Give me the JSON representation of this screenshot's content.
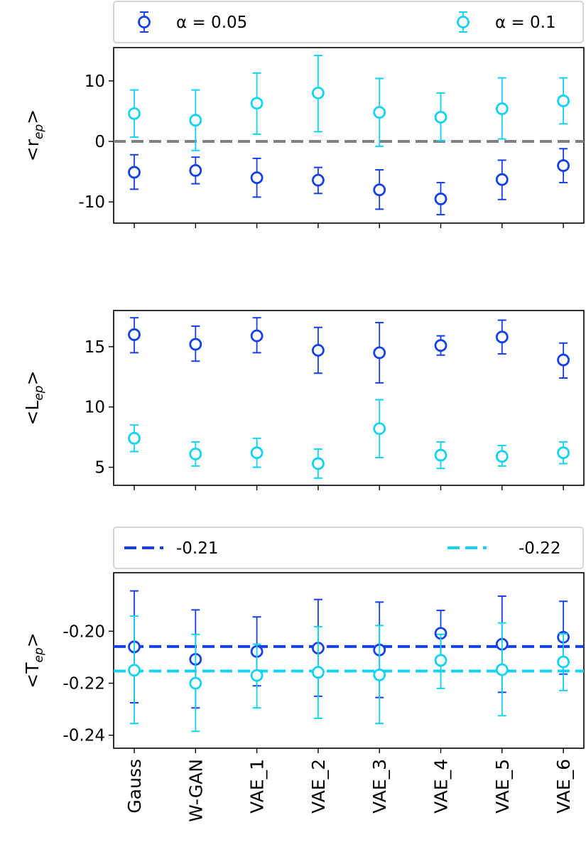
{
  "colors": {
    "alpha_005": "#1440e6",
    "alpha_01": "#12d2f2",
    "zero_line": "#808080"
  },
  "chart_data": [
    {
      "type": "scatter",
      "panel": "top",
      "ylabel_main": "<r",
      "ylabel_sub": "ep",
      "ylabel_end": ">",
      "categories": [
        "Gauss",
        "W-GAN",
        "VAE_1",
        "VAE_2",
        "VAE_3",
        "VAE_4",
        "VAE_5",
        "VAE_6"
      ],
      "ylim": [
        -13.5,
        15.5
      ],
      "yticks": [
        10,
        0,
        -10
      ],
      "ytick_labels": [
        "10",
        "0",
        "-10"
      ],
      "legend": {
        "placement": "top",
        "entries": [
          "α = 0.05",
          "α = 0.1"
        ]
      },
      "hline": {
        "y": 0,
        "style": "dashed",
        "color": "gray"
      },
      "series": [
        {
          "name": "α = 0.05",
          "values": [
            -5.1,
            -4.8,
            -6.0,
            -6.4,
            -8.0,
            -9.5,
            -6.3,
            -4.0
          ],
          "lower": [
            -7.9,
            -7.0,
            -9.2,
            -8.6,
            -11.2,
            -12.1,
            -9.6,
            -6.8
          ],
          "upper": [
            -2.2,
            -2.6,
            -2.8,
            -4.3,
            -4.7,
            -6.8,
            -3.1,
            -1.2
          ]
        },
        {
          "name": "α = 0.1",
          "values": [
            4.6,
            3.5,
            6.3,
            8.0,
            4.8,
            4.0,
            5.4,
            6.7
          ],
          "lower": [
            0.7,
            -1.5,
            1.2,
            1.6,
            -0.8,
            0.1,
            0.4,
            2.9
          ],
          "upper": [
            8.5,
            8.5,
            11.3,
            14.2,
            10.4,
            8.0,
            10.5,
            10.5
          ]
        }
      ]
    },
    {
      "type": "scatter",
      "panel": "middle",
      "ylabel_main": "<L",
      "ylabel_sub": "ep",
      "ylabel_end": ">",
      "categories": [
        "Gauss",
        "W-GAN",
        "VAE_1",
        "VAE_2",
        "VAE_3",
        "VAE_4",
        "VAE_5",
        "VAE_6"
      ],
      "ylim": [
        3.5,
        18.0
      ],
      "yticks": [
        15,
        10,
        5
      ],
      "ytick_labels": [
        "15",
        "10",
        "5"
      ],
      "series": [
        {
          "name": "α = 0.05",
          "values": [
            16.0,
            15.2,
            15.9,
            14.7,
            14.5,
            15.1,
            15.8,
            13.9
          ],
          "lower": [
            14.5,
            13.8,
            14.5,
            12.8,
            12.0,
            14.3,
            14.4,
            12.4
          ],
          "upper": [
            17.4,
            16.7,
            17.4,
            16.6,
            17.0,
            15.9,
            17.2,
            15.3
          ]
        },
        {
          "name": "α = 0.1",
          "values": [
            7.4,
            6.1,
            6.2,
            5.3,
            8.2,
            6.0,
            5.9,
            6.2
          ],
          "lower": [
            6.3,
            5.1,
            5.0,
            4.1,
            5.8,
            4.9,
            5.1,
            5.3
          ],
          "upper": [
            8.5,
            7.1,
            7.4,
            6.5,
            10.6,
            7.1,
            6.8,
            7.1
          ]
        }
      ]
    },
    {
      "type": "scatter",
      "panel": "bottom",
      "ylabel_main": "<T",
      "ylabel_sub": "ep",
      "ylabel_end": ">",
      "categories": [
        "Gauss",
        "W-GAN",
        "VAE_1",
        "VAE_2",
        "VAE_3",
        "VAE_4",
        "VAE_5",
        "VAE_6"
      ],
      "ylim": [
        -0.245,
        -0.1775
      ],
      "yticks": [
        -0.2,
        -0.22,
        -0.24
      ],
      "ytick_labels": [
        "-0.20",
        "-0.22",
        "-0.24"
      ],
      "legend": {
        "placement": "top",
        "entries": [
          "-0.21",
          "-0.22"
        ]
      },
      "hlines": [
        {
          "y": -0.2059,
          "label": "-0.21",
          "series": "α = 0.05"
        },
        {
          "y": -0.2153,
          "label": "-0.22",
          "series": "α = 0.1"
        }
      ],
      "series": [
        {
          "name": "α = 0.05",
          "values": [
            -0.206,
            -0.2108,
            -0.2078,
            -0.2065,
            -0.2072,
            -0.2008,
            -0.205,
            -0.2023
          ],
          "lower": [
            -0.2275,
            -0.2295,
            -0.221,
            -0.225,
            -0.2255,
            -0.2125,
            -0.2235,
            -0.2165
          ],
          "upper": [
            -0.1845,
            -0.1918,
            -0.1945,
            -0.1878,
            -0.1888,
            -0.192,
            -0.1865,
            -0.1885
          ]
        },
        {
          "name": "α = 0.1",
          "values": [
            -0.215,
            -0.22,
            -0.217,
            -0.2158,
            -0.2168,
            -0.2112,
            -0.2148,
            -0.2118
          ],
          "lower": [
            -0.2355,
            -0.2385,
            -0.2295,
            -0.2335,
            -0.2355,
            -0.222,
            -0.2325,
            -0.2228
          ],
          "upper": [
            -0.1942,
            -0.2012,
            -0.205,
            -0.1983,
            -0.1978,
            -0.2012,
            -0.1968,
            -0.201
          ]
        }
      ]
    }
  ]
}
